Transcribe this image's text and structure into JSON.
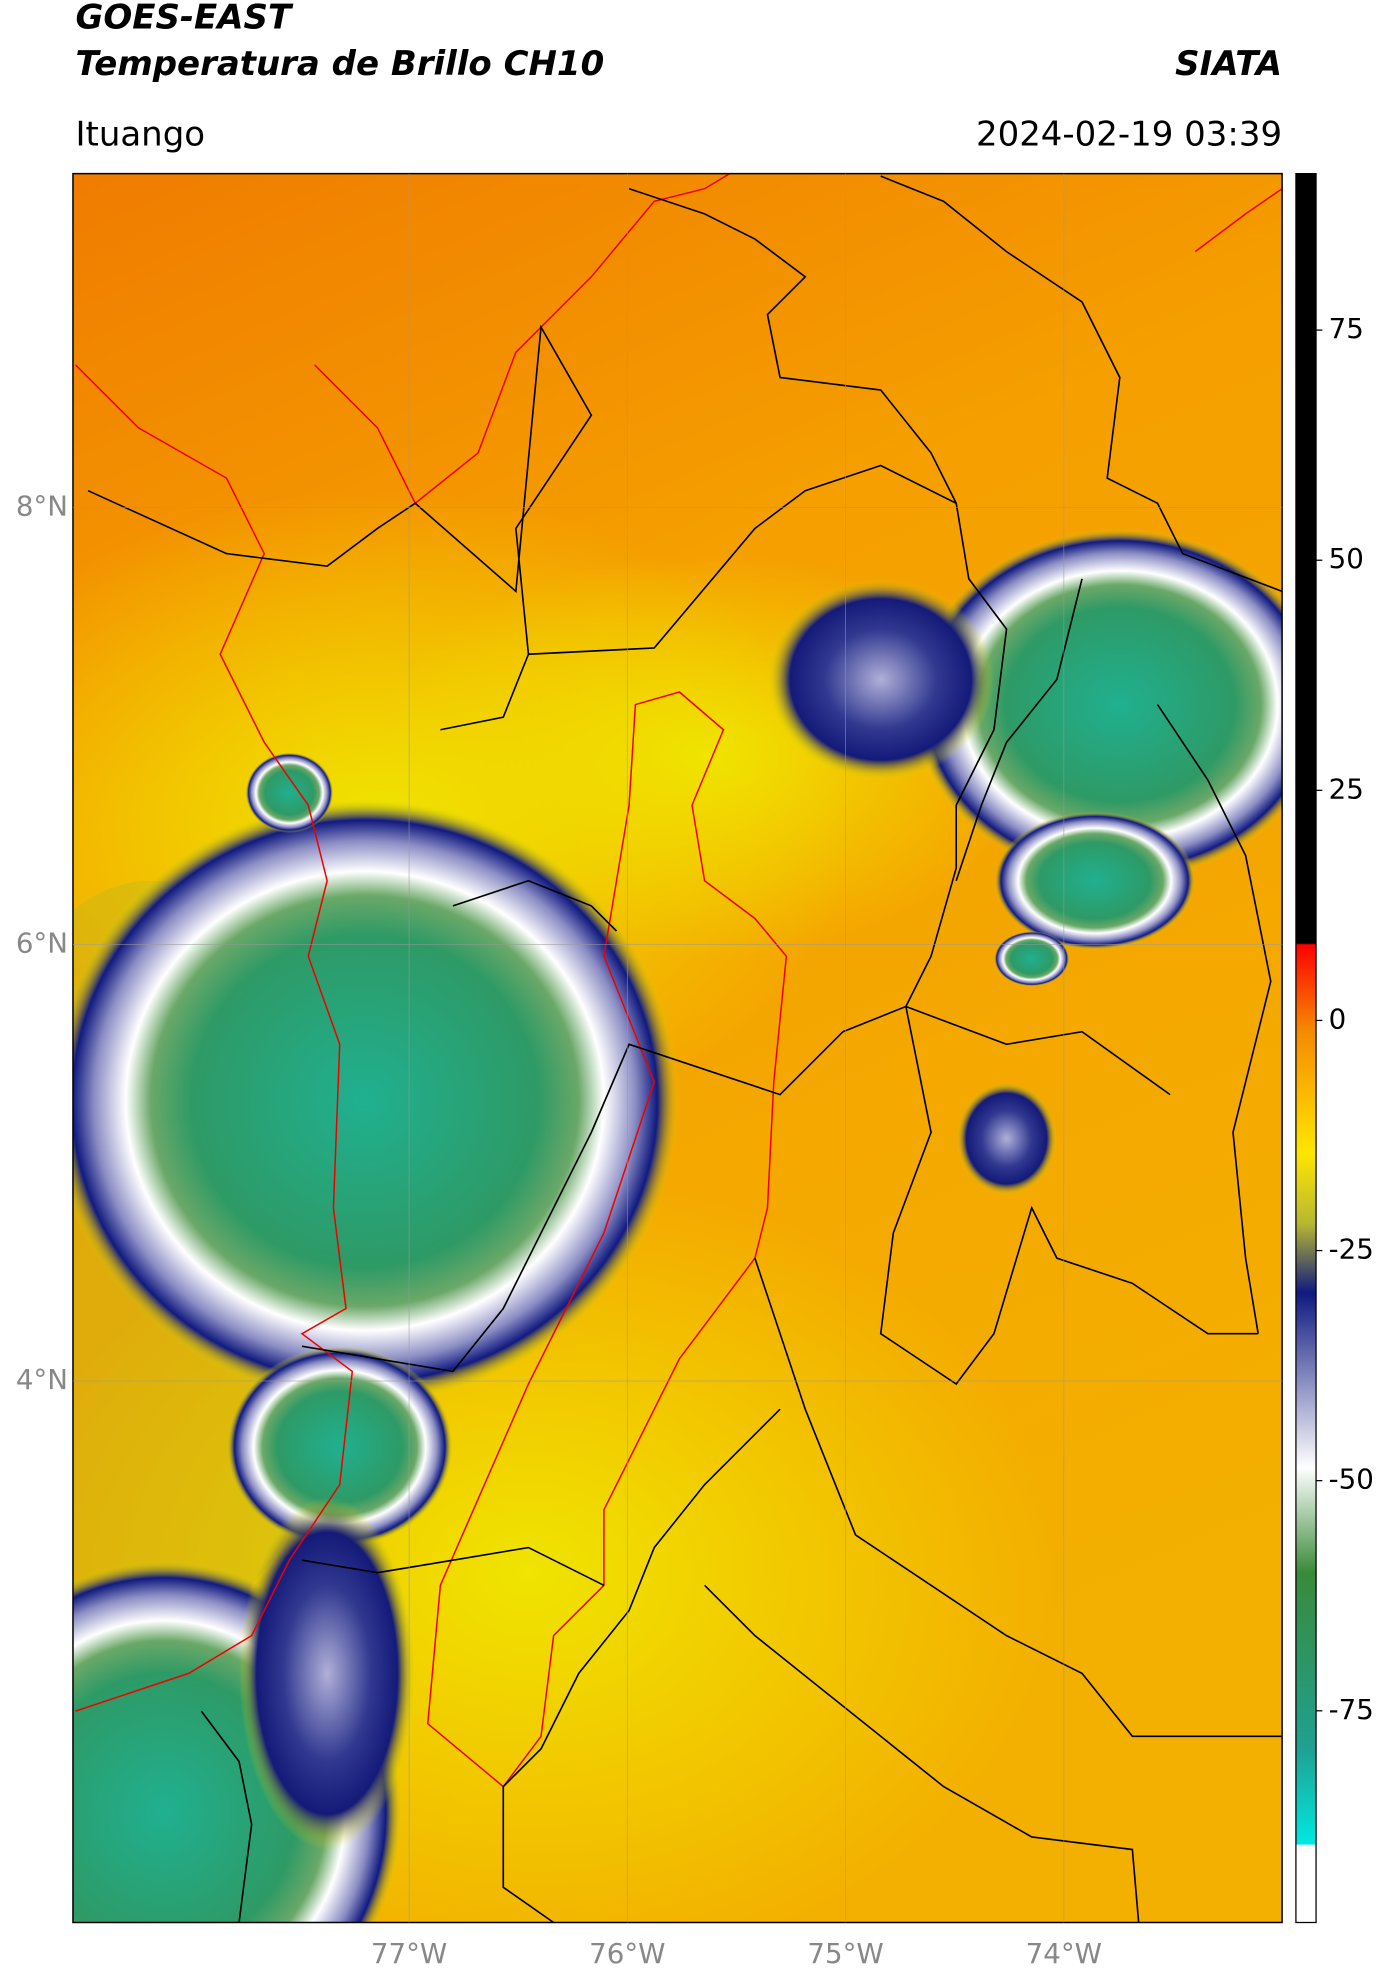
{
  "header": {
    "title": "GOES-EAST",
    "subtitle": "Temperatura de Brillo CH10",
    "source": "SIATA",
    "location": "Ituango",
    "timestamp": "2024-02-19 03:39"
  },
  "map": {
    "xlim": [
      -78.54,
      -73.0
    ],
    "ylim": [
      1.52,
      9.53
    ],
    "grid": true,
    "xticks": [
      {
        "value": -77,
        "label": "77°W"
      },
      {
        "value": -76,
        "label": "76°W"
      },
      {
        "value": -75,
        "label": "75°W"
      },
      {
        "value": -74,
        "label": "74°W"
      }
    ],
    "yticks": [
      {
        "value": 8,
        "label": "8°N"
      },
      {
        "value": 6,
        "label": "6°N"
      },
      {
        "value": 4,
        "label": "4°N"
      }
    ]
  },
  "colorbar": {
    "lim": [
      -98,
      92
    ],
    "ticks": [
      75,
      50,
      25,
      0,
      -25,
      -50,
      -75
    ]
  }
}
